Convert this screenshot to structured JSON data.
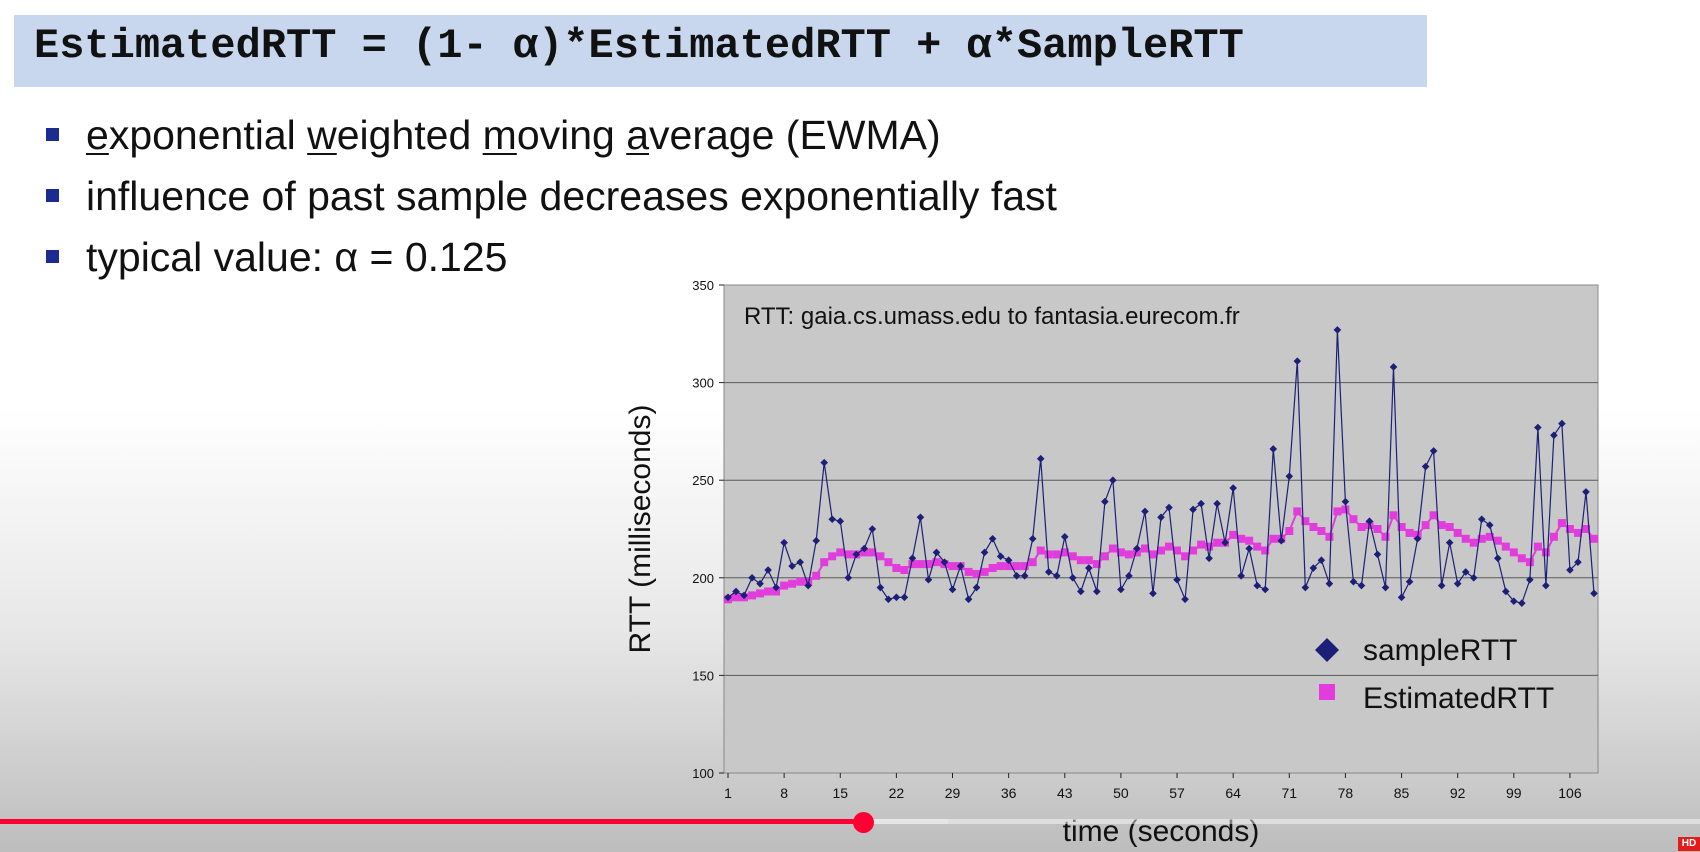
{
  "slide": {
    "formula": "EstimatedRTT = (1- α)*EstimatedRTT + α*SampleRTT",
    "bullets": {
      "b1": {
        "p1": "e",
        "p2": "xponential ",
        "p3": "w",
        "p4": "eighted ",
        "p5": "m",
        "p6": "oving ",
        "p7": "a",
        "p8": "verage (EWMA)"
      },
      "b2": "influence of past sample decreases exponentially fast",
      "b3": "typical value: α = 0.125"
    }
  },
  "colors": {
    "sample": "#1c1f78",
    "estimated": "#e23ddc",
    "plot_bg": "#c8c8c8",
    "accent_red": "#ff0033",
    "bullet_square": "#1c2b8f"
  },
  "chart_data": {
    "type": "line",
    "title": "RTT: gaia.cs.umass.edu to fantasia.eurecom.fr",
    "xlabel": "time (seconds)",
    "ylabel": "RTT (milliseconds)",
    "ylim": [
      100,
      350
    ],
    "yticks": [
      100,
      150,
      200,
      250,
      300,
      350
    ],
    "xticks": [
      1,
      8,
      15,
      22,
      29,
      36,
      43,
      50,
      57,
      64,
      71,
      78,
      85,
      92,
      99,
      106
    ],
    "xlim": [
      1,
      109
    ],
    "grid": true,
    "legend_position": "bottom-right",
    "series": [
      {
        "name": "sampleRTT",
        "marker": "diamond",
        "values": [
          190,
          193,
          191,
          200,
          197,
          204,
          195,
          218,
          206,
          208,
          196,
          219,
          259,
          230,
          229,
          200,
          212,
          215,
          225,
          195,
          189,
          190,
          190,
          210,
          231,
          199,
          213,
          208,
          194,
          206,
          189,
          195,
          213,
          220,
          211,
          209,
          201,
          201,
          220,
          261,
          203,
          201,
          221,
          200,
          193,
          205,
          193,
          239,
          250,
          194,
          201,
          215,
          234,
          192,
          231,
          236,
          199,
          189,
          235,
          238,
          210,
          238,
          218,
          246,
          201,
          215,
          196,
          194,
          266,
          219,
          252,
          311,
          195,
          205,
          209,
          197,
          327,
          239,
          198,
          196,
          229,
          212,
          195,
          308,
          190,
          198,
          220,
          257,
          265,
          196,
          218,
          197,
          203,
          200,
          230,
          227,
          210,
          193,
          188,
          187,
          199,
          277,
          196,
          273,
          279,
          204,
          208,
          244,
          192
        ]
      },
      {
        "name": "EstimatedRTT",
        "marker": "square",
        "values": [
          189,
          190,
          190,
          191,
          192,
          193,
          193,
          196,
          197,
          198,
          198,
          201,
          208,
          211,
          213,
          212,
          212,
          213,
          213,
          211,
          208,
          205,
          204,
          207,
          207,
          207,
          208,
          207,
          206,
          206,
          203,
          202,
          203,
          205,
          206,
          206,
          206,
          206,
          208,
          214,
          212,
          212,
          213,
          211,
          209,
          209,
          207,
          211,
          215,
          213,
          212,
          213,
          215,
          212,
          214,
          216,
          214,
          211,
          214,
          217,
          216,
          218,
          218,
          222,
          220,
          219,
          216,
          214,
          220,
          220,
          224,
          234,
          229,
          226,
          224,
          221,
          234,
          235,
          230,
          226,
          227,
          225,
          221,
          232,
          226,
          223,
          222,
          227,
          232,
          227,
          226,
          223,
          220,
          218,
          220,
          221,
          219,
          216,
          213,
          210,
          208,
          216,
          213,
          221,
          228,
          225,
          223,
          225,
          220
        ]
      }
    ]
  }
}
